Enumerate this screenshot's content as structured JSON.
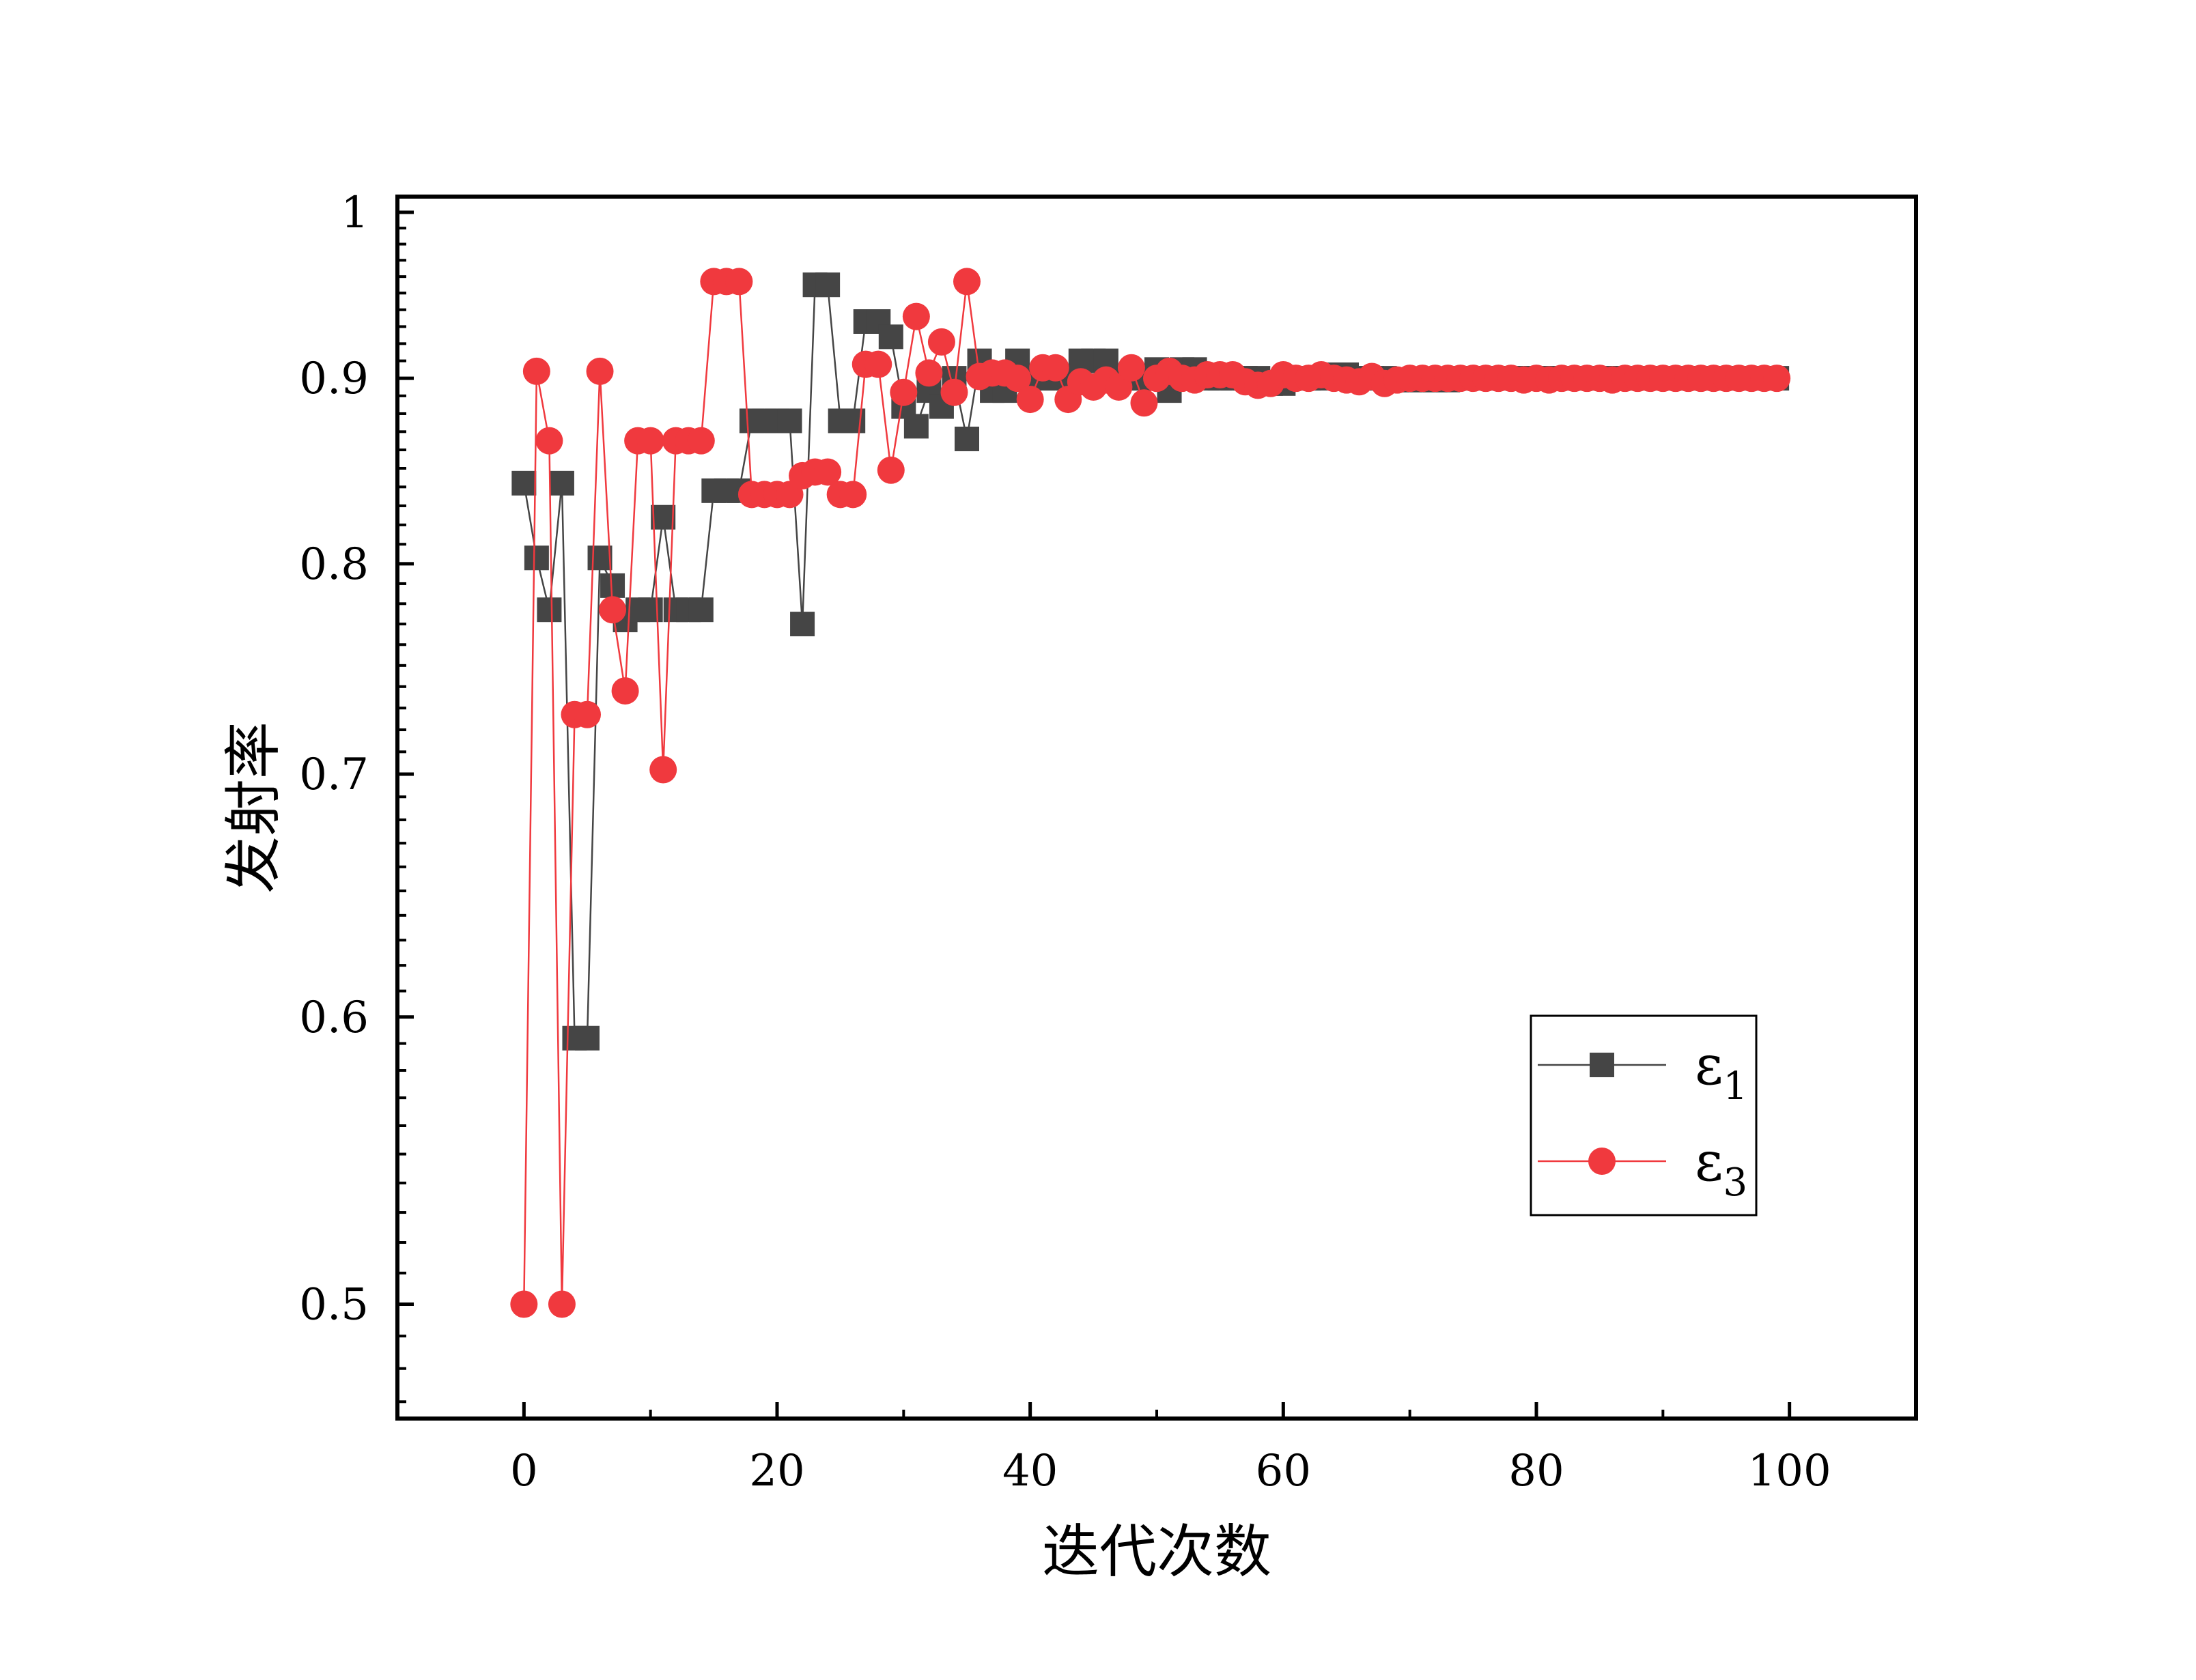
{
  "chart_data": {
    "type": "line",
    "xlabel": "迭代次数",
    "ylabel": "发射率",
    "xlim": [
      -10,
      110
    ],
    "ylim": [
      0.465,
      1.01
    ],
    "x_ticks": [
      0,
      20,
      40,
      60,
      80,
      100
    ],
    "y_ticks": [
      0.5,
      0.6,
      0.7,
      0.8,
      0.9,
      1
    ],
    "y_tick_labels": [
      "0.5",
      "0.6",
      "0.7",
      "0.8",
      "0.9",
      "1"
    ],
    "y_scale": "log",
    "legend_position": "lower-right",
    "grid": false,
    "series": [
      {
        "name": "ε",
        "subscript": "1",
        "color": "#454545",
        "marker": "square",
        "x": [
          0,
          1,
          2,
          3,
          4,
          5,
          6,
          7,
          8,
          9,
          10,
          11,
          12,
          13,
          14,
          15,
          16,
          17,
          18,
          19,
          20,
          21,
          22,
          23,
          24,
          25,
          26,
          27,
          28,
          29,
          30,
          31,
          32,
          33,
          34,
          35,
          36,
          37,
          38,
          39,
          40,
          41,
          42,
          43,
          44,
          45,
          46,
          47,
          48,
          49,
          50,
          51,
          52,
          53,
          54,
          55,
          56,
          57,
          58,
          59,
          60,
          61,
          62,
          63,
          64,
          65,
          66,
          67,
          68,
          69,
          70,
          71,
          72,
          73,
          74,
          75,
          76,
          77,
          78,
          79,
          80,
          81,
          82,
          83,
          84,
          85,
          86,
          87,
          88,
          89,
          90,
          91,
          92,
          93,
          94,
          95,
          96,
          97,
          98,
          99
        ],
        "values": [
          0.842,
          0.803,
          0.777,
          0.842,
          0.592,
          0.592,
          0.803,
          0.789,
          0.772,
          0.777,
          0.777,
          0.824,
          0.777,
          0.777,
          0.777,
          0.838,
          0.838,
          0.838,
          0.876,
          0.876,
          0.876,
          0.876,
          0.77,
          0.955,
          0.955,
          0.876,
          0.876,
          0.933,
          0.933,
          0.924,
          0.884,
          0.873,
          0.893,
          0.884,
          0.9,
          0.866,
          0.91,
          0.893,
          0.893,
          0.91,
          0.9,
          0.9,
          0.9,
          0.9,
          0.91,
          0.91,
          0.91,
          0.9,
          0.9,
          0.9,
          0.905,
          0.893,
          0.905,
          0.905,
          0.9,
          0.9,
          0.9,
          0.9,
          0.9,
          0.897,
          0.897,
          0.9,
          0.9,
          0.9,
          0.902,
          0.902,
          0.9,
          0.9,
          0.9,
          0.899,
          0.899,
          0.899,
          0.899,
          0.899,
          0.9,
          0.9,
          0.9,
          0.9,
          0.9,
          0.9,
          0.9,
          0.9,
          0.9,
          0.9,
          0.9,
          0.9,
          0.9,
          0.9,
          0.9,
          0.9,
          0.9,
          0.9,
          0.9,
          0.9,
          0.9,
          0.9,
          0.9,
          0.9,
          0.9,
          0.9
        ]
      },
      {
        "name": "ε",
        "subscript": "3",
        "color": "#f0393e",
        "marker": "circle",
        "x": [
          0,
          1,
          2,
          3,
          4,
          5,
          6,
          7,
          8,
          9,
          10,
          11,
          12,
          13,
          14,
          15,
          16,
          17,
          18,
          19,
          20,
          21,
          22,
          23,
          24,
          25,
          26,
          27,
          28,
          29,
          30,
          31,
          32,
          33,
          34,
          35,
          36,
          37,
          38,
          39,
          40,
          41,
          42,
          43,
          44,
          45,
          46,
          47,
          48,
          49,
          50,
          51,
          52,
          53,
          54,
          55,
          56,
          57,
          58,
          59,
          60,
          61,
          62,
          63,
          64,
          65,
          66,
          67,
          68,
          69,
          70,
          71,
          72,
          73,
          74,
          75,
          76,
          77,
          78,
          79,
          80,
          81,
          82,
          83,
          84,
          85,
          86,
          87,
          88,
          89,
          90,
          91,
          92,
          93,
          94,
          95,
          96,
          97,
          98,
          99
        ],
        "values": [
          0.5,
          0.904,
          0.865,
          0.5,
          0.727,
          0.727,
          0.904,
          0.777,
          0.738,
          0.865,
          0.865,
          0.702,
          0.865,
          0.865,
          0.865,
          0.957,
          0.957,
          0.957,
          0.836,
          0.836,
          0.836,
          0.836,
          0.846,
          0.848,
          0.848,
          0.836,
          0.836,
          0.908,
          0.908,
          0.849,
          0.892,
          0.936,
          0.903,
          0.921,
          0.892,
          0.957,
          0.901,
          0.903,
          0.903,
          0.9,
          0.888,
          0.906,
          0.906,
          0.888,
          0.898,
          0.895,
          0.899,
          0.895,
          0.906,
          0.886,
          0.9,
          0.904,
          0.9,
          0.899,
          0.902,
          0.902,
          0.902,
          0.898,
          0.896,
          0.897,
          0.902,
          0.9,
          0.9,
          0.902,
          0.9,
          0.899,
          0.898,
          0.901,
          0.897,
          0.899,
          0.9,
          0.9,
          0.9,
          0.9,
          0.9,
          0.9,
          0.9,
          0.9,
          0.9,
          0.899,
          0.9,
          0.899,
          0.9,
          0.9,
          0.9,
          0.9,
          0.899,
          0.9,
          0.9,
          0.9,
          0.9,
          0.9,
          0.9,
          0.9,
          0.9,
          0.9,
          0.9,
          0.9,
          0.9,
          0.9
        ]
      }
    ]
  }
}
